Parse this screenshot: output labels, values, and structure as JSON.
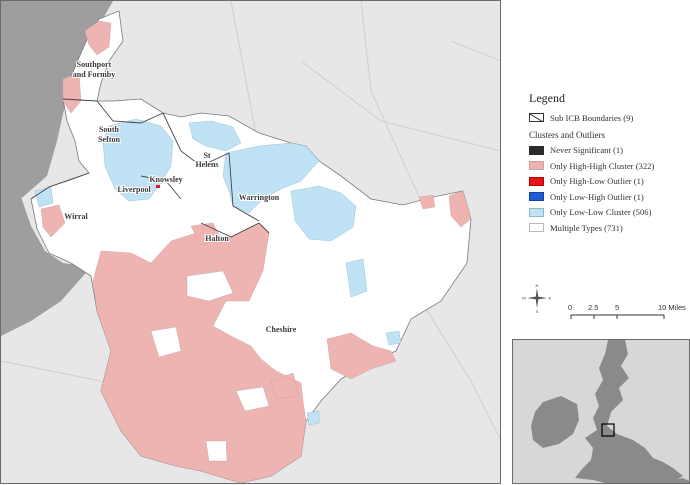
{
  "map": {
    "places": [
      {
        "id": "southport",
        "lines": [
          "Southport",
          "and Formby"
        ]
      },
      {
        "id": "south-sefton",
        "lines": [
          "South",
          "Sefton"
        ]
      },
      {
        "id": "st-helens",
        "lines": [
          "St",
          "Helens"
        ]
      },
      {
        "id": "knowsley",
        "lines": [
          "Knowsley"
        ]
      },
      {
        "id": "liverpool",
        "lines": [
          "Liverpool"
        ]
      },
      {
        "id": "warrington",
        "lines": [
          "Warrington"
        ]
      },
      {
        "id": "wirral",
        "lines": [
          "Wirral"
        ]
      },
      {
        "id": "halton",
        "lines": [
          "Halton"
        ]
      },
      {
        "id": "cheshire",
        "lines": [
          "Cheshire"
        ]
      }
    ],
    "colors": {
      "background": "#e7e7e7",
      "sea": "#9e9e9e",
      "high_high": "#eeb4b2",
      "low_low": "#bfe3f5",
      "multiple": "#ffffff",
      "never": "#2b2b2b",
      "high_low": "#e8141b",
      "low_high": "#1f5ad6",
      "boundary": "#7a7a7a"
    }
  },
  "legend": {
    "title": "Legend",
    "boundary_label": "Sub ICB Boundaries (9)",
    "subtitle": "Clusters and Outliers",
    "items": [
      {
        "label": "Never Significant (1)",
        "color": "#2b2b2b"
      },
      {
        "label": "Only High-High Cluster (322)",
        "color": "#eeb4b2"
      },
      {
        "label": "Only High-Low Outlier (1)",
        "color": "#e8141b"
      },
      {
        "label": "Only Low-High Outlier (1)",
        "color": "#1f5ad6"
      },
      {
        "label": "Only Low-Low Cluster (506)",
        "color": "#bfe3f5"
      },
      {
        "label": "Multiple Types (731)",
        "color": "#ffffff"
      }
    ]
  },
  "compass": {
    "n": "N",
    "s": "S",
    "e": "E",
    "w": "W"
  },
  "scale": {
    "ticks": [
      "0",
      "2.5",
      "5",
      "10 Miles"
    ]
  }
}
